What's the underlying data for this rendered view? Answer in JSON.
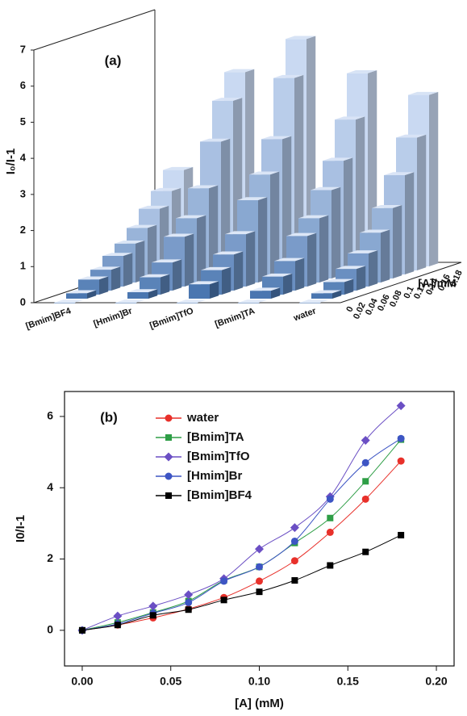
{
  "chart_data": [
    {
      "type": "bar3d",
      "panel_label": "(a)",
      "y_label": "I₀/I-1",
      "depth_label": "[A]/mM",
      "categories": [
        "[Bmim]BF4",
        "[Hmim]Br",
        "[Bmim]TfO",
        "[Bmim]TA",
        "water"
      ],
      "depth": [
        0,
        0.02,
        0.04,
        0.06,
        0.08,
        0.1,
        0.12,
        0.14,
        0.16,
        0.18
      ],
      "values": [
        [
          0,
          0.15,
          0.42,
          0.58,
          0.85,
          1.08,
          1.4,
          1.82,
          2.2,
          2.67
        ],
        [
          0,
          0.18,
          0.48,
          0.78,
          1.38,
          1.78,
          2.5,
          3.68,
          4.7,
          5.38
        ],
        [
          0,
          0.4,
          0.68,
          1.0,
          1.45,
          2.28,
          2.88,
          3.75,
          5.33,
          6.3
        ],
        [
          0,
          0.22,
          0.5,
          0.82,
          1.4,
          1.78,
          2.45,
          3.15,
          4.18,
          5.35
        ],
        [
          0,
          0.15,
          0.35,
          0.6,
          0.92,
          1.38,
          1.95,
          2.75,
          3.68,
          4.75
        ]
      ],
      "colors": [
        "#3a6aa8",
        "#c9d9f2"
      ],
      "zlim": [
        0,
        7
      ],
      "zticks": [
        0,
        1,
        2,
        3,
        4,
        5,
        6,
        7
      ]
    },
    {
      "type": "scatter",
      "panel_label": "(b)",
      "x_label": "[A] (mM)",
      "y_label": "I0/I-1",
      "x": [
        0,
        0.02,
        0.04,
        0.06,
        0.08,
        0.1,
        0.12,
        0.14,
        0.16,
        0.18
      ],
      "series": [
        {
          "name": "water",
          "color": "#e8302a",
          "marker": "circle",
          "values": [
            0,
            0.15,
            0.35,
            0.6,
            0.92,
            1.38,
            1.95,
            2.75,
            3.68,
            4.75
          ]
        },
        {
          "name": "[Bmim]TA",
          "color": "#2e9e46",
          "marker": "square",
          "values": [
            0,
            0.22,
            0.5,
            0.82,
            1.4,
            1.78,
            2.45,
            3.15,
            4.18,
            5.35
          ]
        },
        {
          "name": "[Bmim]TfO",
          "color": "#6b4fc4",
          "marker": "diamond",
          "values": [
            0,
            0.4,
            0.68,
            1.0,
            1.45,
            2.28,
            2.88,
            3.75,
            5.33,
            6.3
          ]
        },
        {
          "name": "[Hmim]Br",
          "color": "#3d55c4",
          "marker": "circle",
          "values": [
            0,
            0.18,
            0.48,
            0.78,
            1.38,
            1.78,
            2.5,
            3.68,
            4.7,
            5.38
          ]
        },
        {
          "name": "[Bmim]BF4",
          "color": "#000000",
          "marker": "square",
          "values": [
            0,
            0.15,
            0.42,
            0.58,
            0.85,
            1.08,
            1.4,
            1.82,
            2.2,
            2.67
          ]
        }
      ],
      "xlim": [
        -0.01,
        0.21
      ],
      "ylim": [
        -1,
        6.7
      ],
      "xticks": [
        {
          "value": 0,
          "label": "0.00"
        },
        {
          "value": 0.05,
          "label": "0.05"
        },
        {
          "value": 0.1,
          "label": "0.10"
        },
        {
          "value": 0.15,
          "label": "0.15"
        },
        {
          "value": 0.2,
          "label": "0.20"
        }
      ],
      "yticks": [
        0,
        2,
        4,
        6
      ]
    }
  ]
}
